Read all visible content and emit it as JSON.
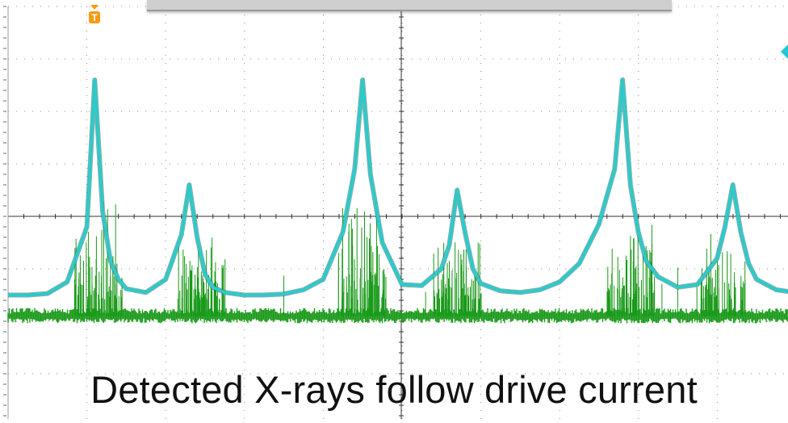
{
  "caption": "Detected X-rays follow drive current",
  "markers": {
    "trigger_label": "T",
    "trigger_color": "#f39c12",
    "channel_marker_color": "#1fc8d8"
  },
  "chart_data": {
    "type": "line",
    "title": "",
    "xlabel": "",
    "ylabel": "",
    "x_divisions": 10,
    "y_divisions": 8,
    "grid": true,
    "x": [
      0.0,
      0.25,
      0.5,
      0.75,
      1.0,
      1.1,
      1.2,
      1.3,
      1.4,
      1.5,
      1.75,
      2.0,
      2.2,
      2.3,
      2.4,
      2.5,
      2.6,
      2.75,
      3.0,
      3.25,
      3.5,
      3.75,
      4.0,
      4.25,
      4.4,
      4.5,
      4.6,
      4.75,
      5.0,
      5.25,
      5.5,
      5.6,
      5.7,
      5.8,
      5.9,
      6.0,
      6.25,
      6.5,
      6.75,
      7.0,
      7.25,
      7.5,
      7.7,
      7.8,
      7.9,
      8.0,
      8.1,
      8.25,
      8.5,
      8.75,
      9.0,
      9.1,
      9.2,
      9.3,
      9.4,
      9.5,
      9.75,
      10.0
    ],
    "series": [
      {
        "color": "#2fc9c9",
        "values": [
          -1.5,
          -1.5,
          -1.47,
          -1.25,
          -0.2,
          2.6,
          0.1,
          -0.85,
          -1.2,
          -1.38,
          -1.45,
          -1.2,
          -0.35,
          0.6,
          -0.4,
          -1.1,
          -1.35,
          -1.45,
          -1.5,
          -1.5,
          -1.48,
          -1.4,
          -1.2,
          -0.3,
          0.9,
          2.6,
          0.8,
          -0.5,
          -1.3,
          -1.32,
          -1.0,
          -0.55,
          0.5,
          -0.3,
          -1.0,
          -1.28,
          -1.42,
          -1.45,
          -1.4,
          -1.25,
          -0.9,
          -0.15,
          0.9,
          2.6,
          0.6,
          -0.3,
          -0.85,
          -1.15,
          -1.35,
          -1.3,
          -0.8,
          -0.2,
          0.6,
          -0.3,
          -0.9,
          -1.2,
          -1.4,
          -1.45
        ]
      },
      {
        "color": "#1a9a1a",
        "baseline": -1.9,
        "bursts_x": [
          1.15,
          2.45,
          4.5,
          5.7,
          7.9,
          9.05
        ]
      }
    ]
  }
}
